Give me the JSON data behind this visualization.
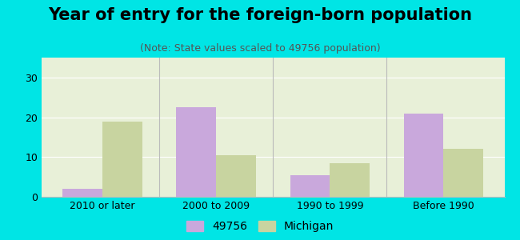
{
  "title": "Year of entry for the foreign-born population",
  "subtitle": "(Note: State values scaled to 49756 population)",
  "categories": [
    "2010 or later",
    "2000 to 2009",
    "1990 to 1999",
    "Before 1990"
  ],
  "series_49756": [
    2.0,
    22.5,
    5.5,
    21.0
  ],
  "series_michigan": [
    19.0,
    10.5,
    8.5,
    12.0
  ],
  "color_49756": "#c9a8dc",
  "color_michigan": "#c8d4a0",
  "background_outer": "#00e5e5",
  "background_plot": "#e8f0d8",
  "ylim": [
    0,
    35
  ],
  "yticks": [
    0,
    10,
    20,
    30
  ],
  "legend_label_1": "49756",
  "legend_label_2": "Michigan",
  "bar_width": 0.35,
  "title_fontsize": 15,
  "subtitle_fontsize": 9,
  "tick_fontsize": 9,
  "legend_fontsize": 10
}
